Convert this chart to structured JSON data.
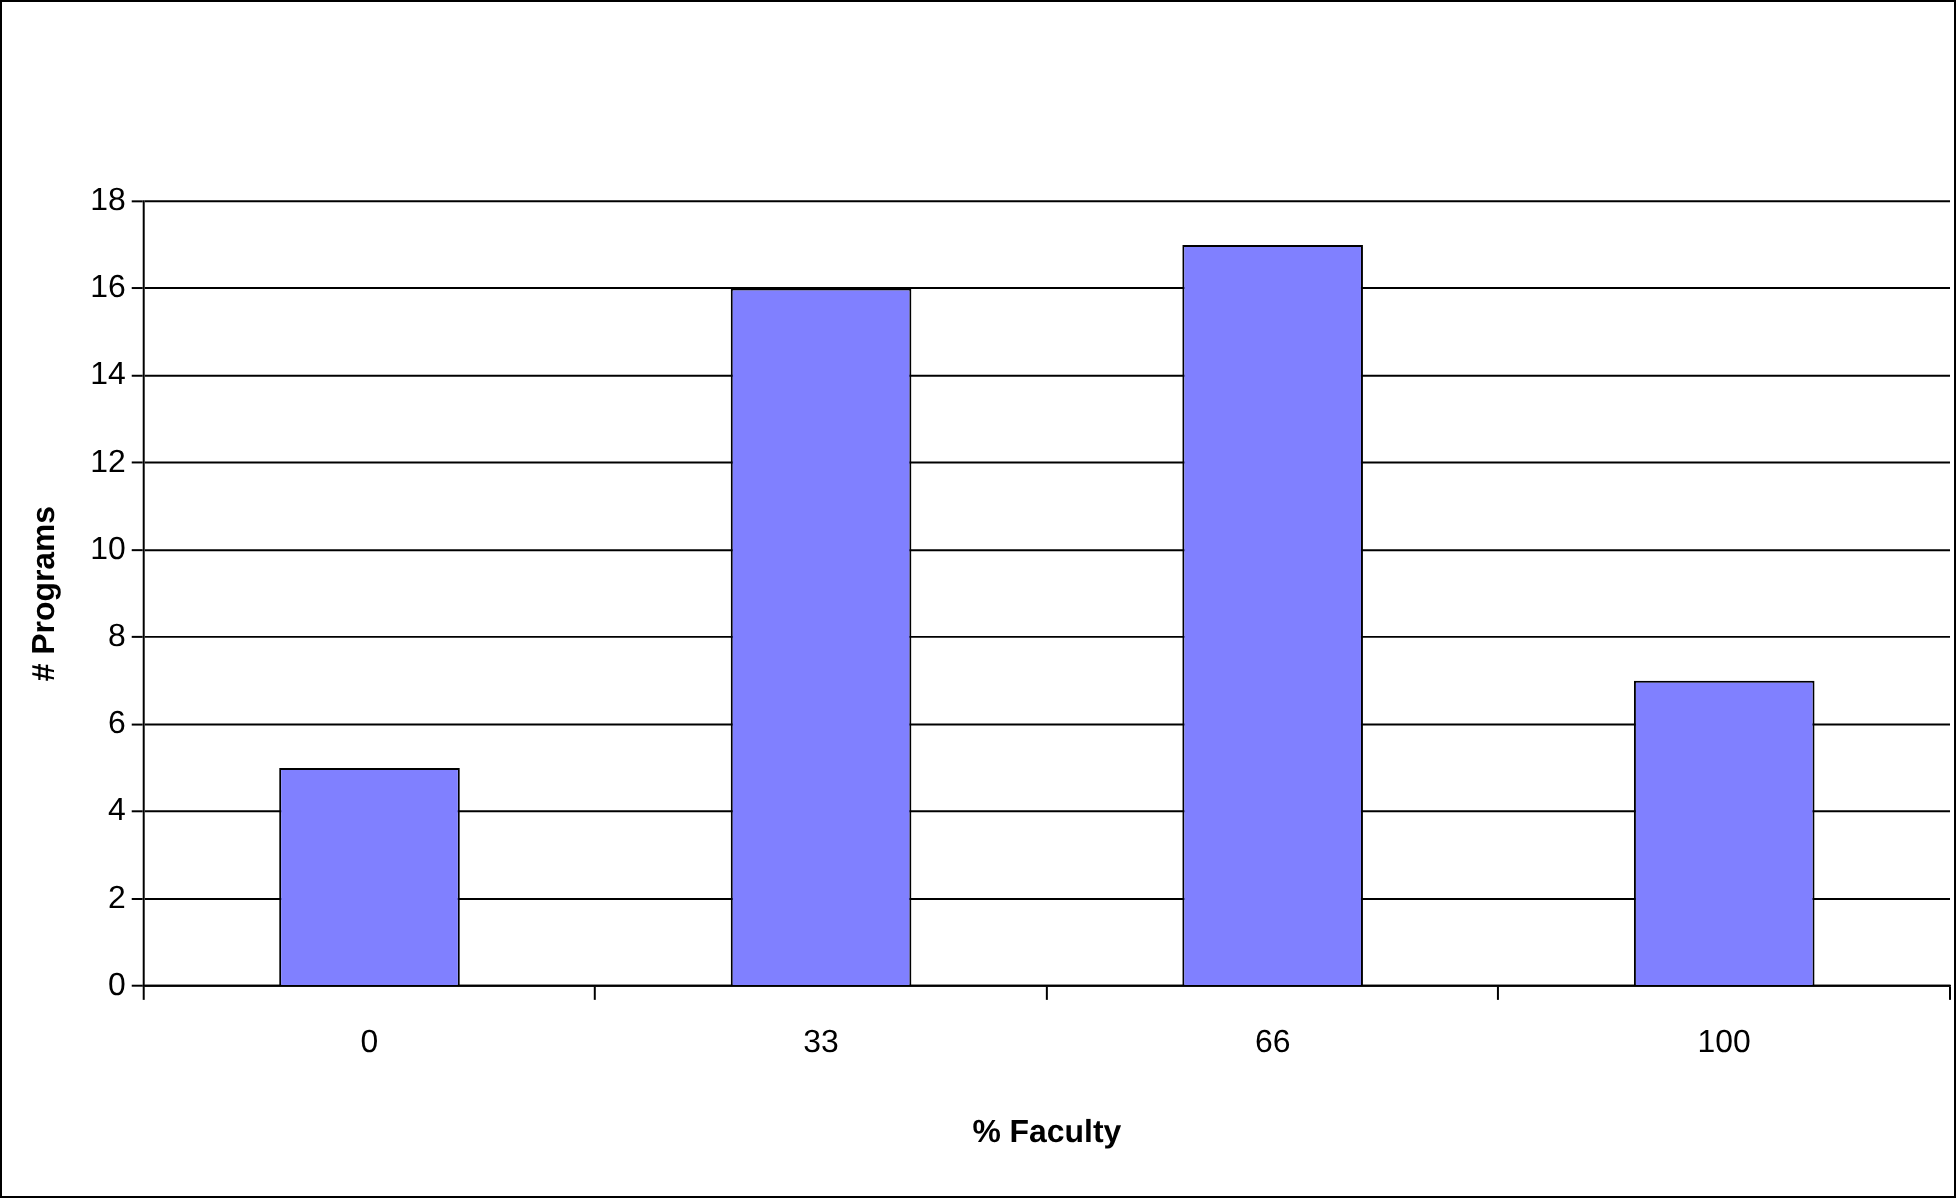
{
  "chart_data": {
    "type": "bar",
    "xlabel": "% Faculty",
    "ylabel": "# Programs",
    "categories": [
      "0",
      "33",
      "66",
      "100"
    ],
    "series": [
      {
        "color": "#8080ff",
        "values": [
          5,
          16,
          17,
          7
        ]
      }
    ],
    "ylim": [
      0,
      18
    ],
    "yticks": [
      0,
      2,
      4,
      6,
      8,
      10,
      12,
      14,
      16,
      18
    ],
    "grid": "y",
    "legend": false
  }
}
